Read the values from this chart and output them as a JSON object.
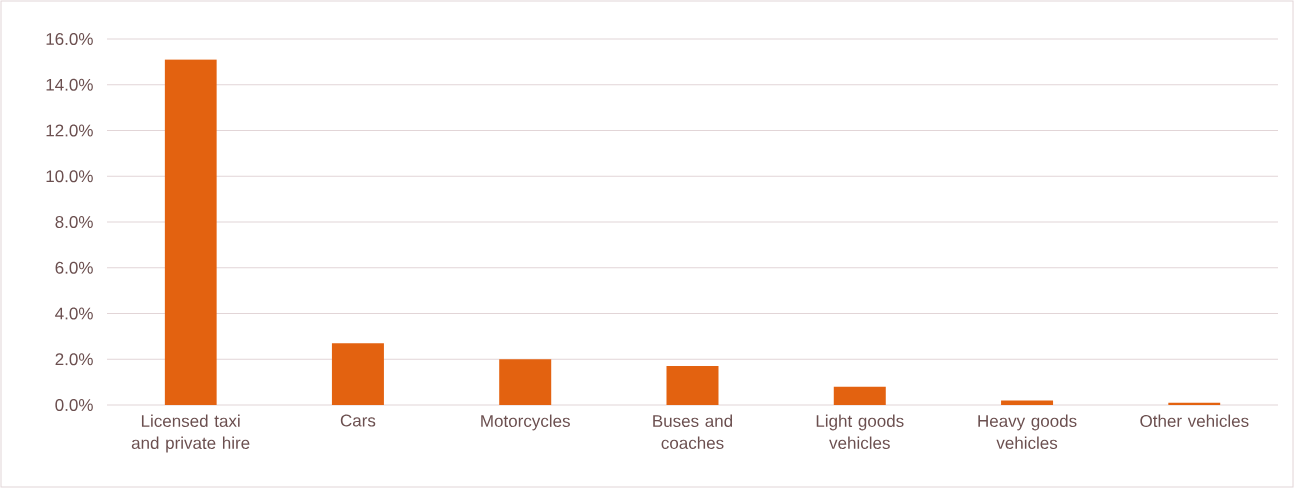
{
  "chart_data": {
    "type": "bar",
    "categories": [
      "Licensed taxi and private hire",
      "Cars",
      "Motorcycles",
      "Buses and coaches",
      "Light goods vehicles",
      "Heavy goods vehicles",
      "Other vehicles"
    ],
    "values": [
      15.1,
      2.7,
      2.0,
      1.7,
      0.8,
      0.2,
      0.1
    ],
    "color": "#e36210",
    "ylim": [
      0,
      16
    ],
    "yticks": [
      {
        "value": 0,
        "label": "0.0%"
      },
      {
        "value": 2,
        "label": "2.0%"
      },
      {
        "value": 4,
        "label": "4.0%"
      },
      {
        "value": 6,
        "label": "6.0%"
      },
      {
        "value": 8,
        "label": "8.0%"
      },
      {
        "value": 10,
        "label": "10.0%"
      },
      {
        "value": 12,
        "label": "12.0%"
      },
      {
        "value": 14,
        "label": "14.0%"
      },
      {
        "value": 16,
        "label": "16.0%"
      }
    ],
    "grid": "y"
  }
}
